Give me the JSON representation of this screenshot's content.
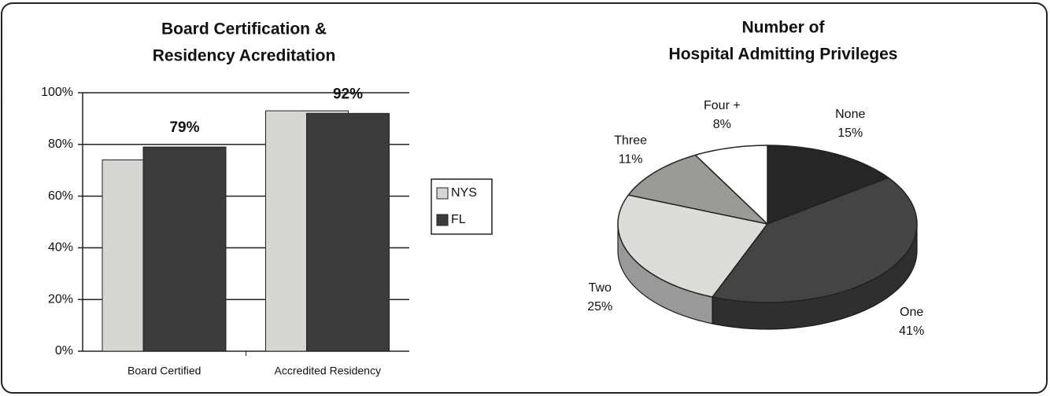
{
  "chart_data": [
    {
      "type": "bar",
      "title": [
        "Board Certification &",
        "Residency Acreditation"
      ],
      "categories": [
        "Board Certified",
        "Accredited Residency"
      ],
      "series": [
        {
          "name": "NYS",
          "color": "#d6d6d2",
          "values": [
            74,
            93
          ]
        },
        {
          "name": "FL",
          "color": "#3b3b3b",
          "values": [
            79,
            92
          ],
          "value_labels": [
            "79%",
            "92%"
          ]
        }
      ],
      "ylim": [
        0,
        100
      ],
      "yticks": [
        {
          "value": 0,
          "label": "0%"
        },
        {
          "value": 20,
          "label": "20%"
        },
        {
          "value": 40,
          "label": "40%"
        },
        {
          "value": 60,
          "label": "60%"
        },
        {
          "value": 80,
          "label": "80%"
        },
        {
          "value": 100,
          "label": "100%"
        }
      ],
      "grid": true,
      "legend": "right"
    },
    {
      "type": "pie",
      "title": [
        "Number of",
        "Hospital Admitting Privileges"
      ],
      "categories": [
        "None",
        "One",
        "Two",
        "Three",
        "Four +"
      ],
      "values": [
        15,
        41,
        25,
        11,
        8
      ],
      "value_labels": [
        "15%",
        "41%",
        "25%",
        "11%",
        "8%"
      ],
      "colors": [
        "#262626",
        "#444444",
        "#dcdcd8",
        "#9a9a96",
        "#ffffff"
      ]
    }
  ]
}
